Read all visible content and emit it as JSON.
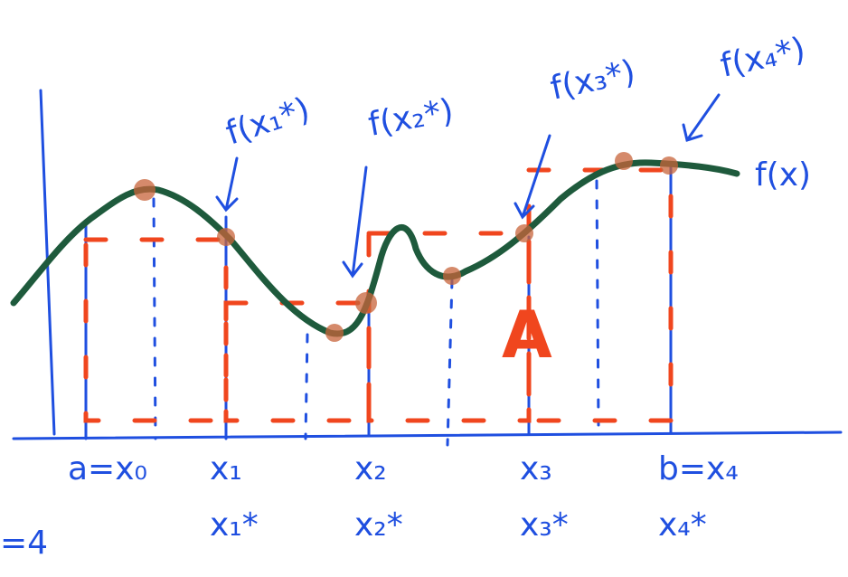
{
  "labels": {
    "f_x1_star": "f(x₁*)",
    "f_x2_star": "f(x₂*)",
    "f_x3_star": "f(x₃*)",
    "f_x4_star": "f(x₄*)",
    "f_x": "f(x)",
    "area": "A",
    "n": "=4"
  },
  "points": [
    {
      "x": "a=x₀"
    },
    {
      "x": "x₁",
      "star": "x₁*"
    },
    {
      "x": "x₂",
      "star": "x₂*"
    },
    {
      "x": "x₃",
      "star": "x₃*"
    },
    {
      "x": "b=x₄",
      "star": "x₄*"
    }
  ]
}
